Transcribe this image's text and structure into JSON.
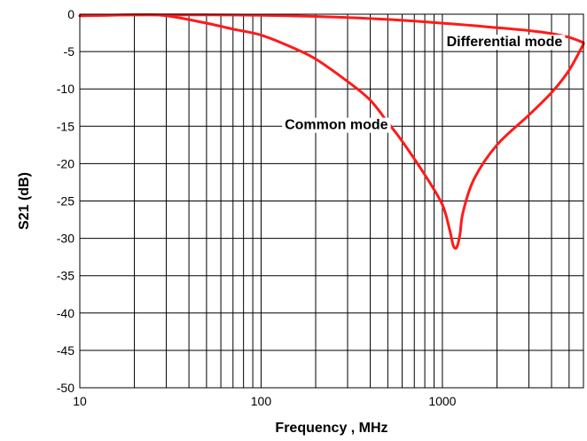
{
  "chart_data": {
    "type": "line",
    "title": "",
    "xlabel": "Frequency , MHz",
    "ylabel": "S21 (dB)",
    "x_scale": "log",
    "xlim": [
      10,
      6000
    ],
    "ylim": [
      -50,
      0
    ],
    "x_tick_labels": [
      "10",
      "100",
      "1000"
    ],
    "y_ticks": [
      0,
      -5,
      -10,
      -15,
      -20,
      -25,
      -30,
      -35,
      -40,
      -45,
      -50
    ],
    "grid": true,
    "line_color": "#ff1a1a",
    "series": [
      {
        "name": "Differential mode",
        "x": [
          10,
          20,
          50,
          100,
          200,
          500,
          1000,
          2000,
          3000,
          4000,
          5000,
          6000
        ],
        "y": [
          -0.2,
          -0.1,
          -0.1,
          -0.15,
          -0.3,
          -0.7,
          -1.2,
          -1.8,
          -2.2,
          -2.6,
          -3.1,
          -3.8
        ]
      },
      {
        "name": "Common mode",
        "x": [
          10,
          20,
          30,
          50,
          70,
          100,
          150,
          200,
          300,
          400,
          500,
          600,
          800,
          1000,
          1100,
          1150,
          1200,
          1250,
          1300,
          1500,
          2000,
          3000,
          4000,
          5000,
          6000
        ],
        "y": [
          -0.2,
          -0.1,
          -0.2,
          -1.2,
          -2.0,
          -2.8,
          -4.5,
          -6.0,
          -9.0,
          -11.5,
          -14.5,
          -17.0,
          -21.5,
          -25.5,
          -29.0,
          -31.0,
          -31.2,
          -29.5,
          -26.5,
          -22.0,
          -17.5,
          -13.5,
          -10.5,
          -7.5,
          -4.0
        ]
      }
    ],
    "annotations": [
      {
        "text": "Differential mode",
        "x": 2200,
        "y": -4.3
      },
      {
        "text": "Common mode",
        "x": 260,
        "y": -15.4
      }
    ]
  }
}
